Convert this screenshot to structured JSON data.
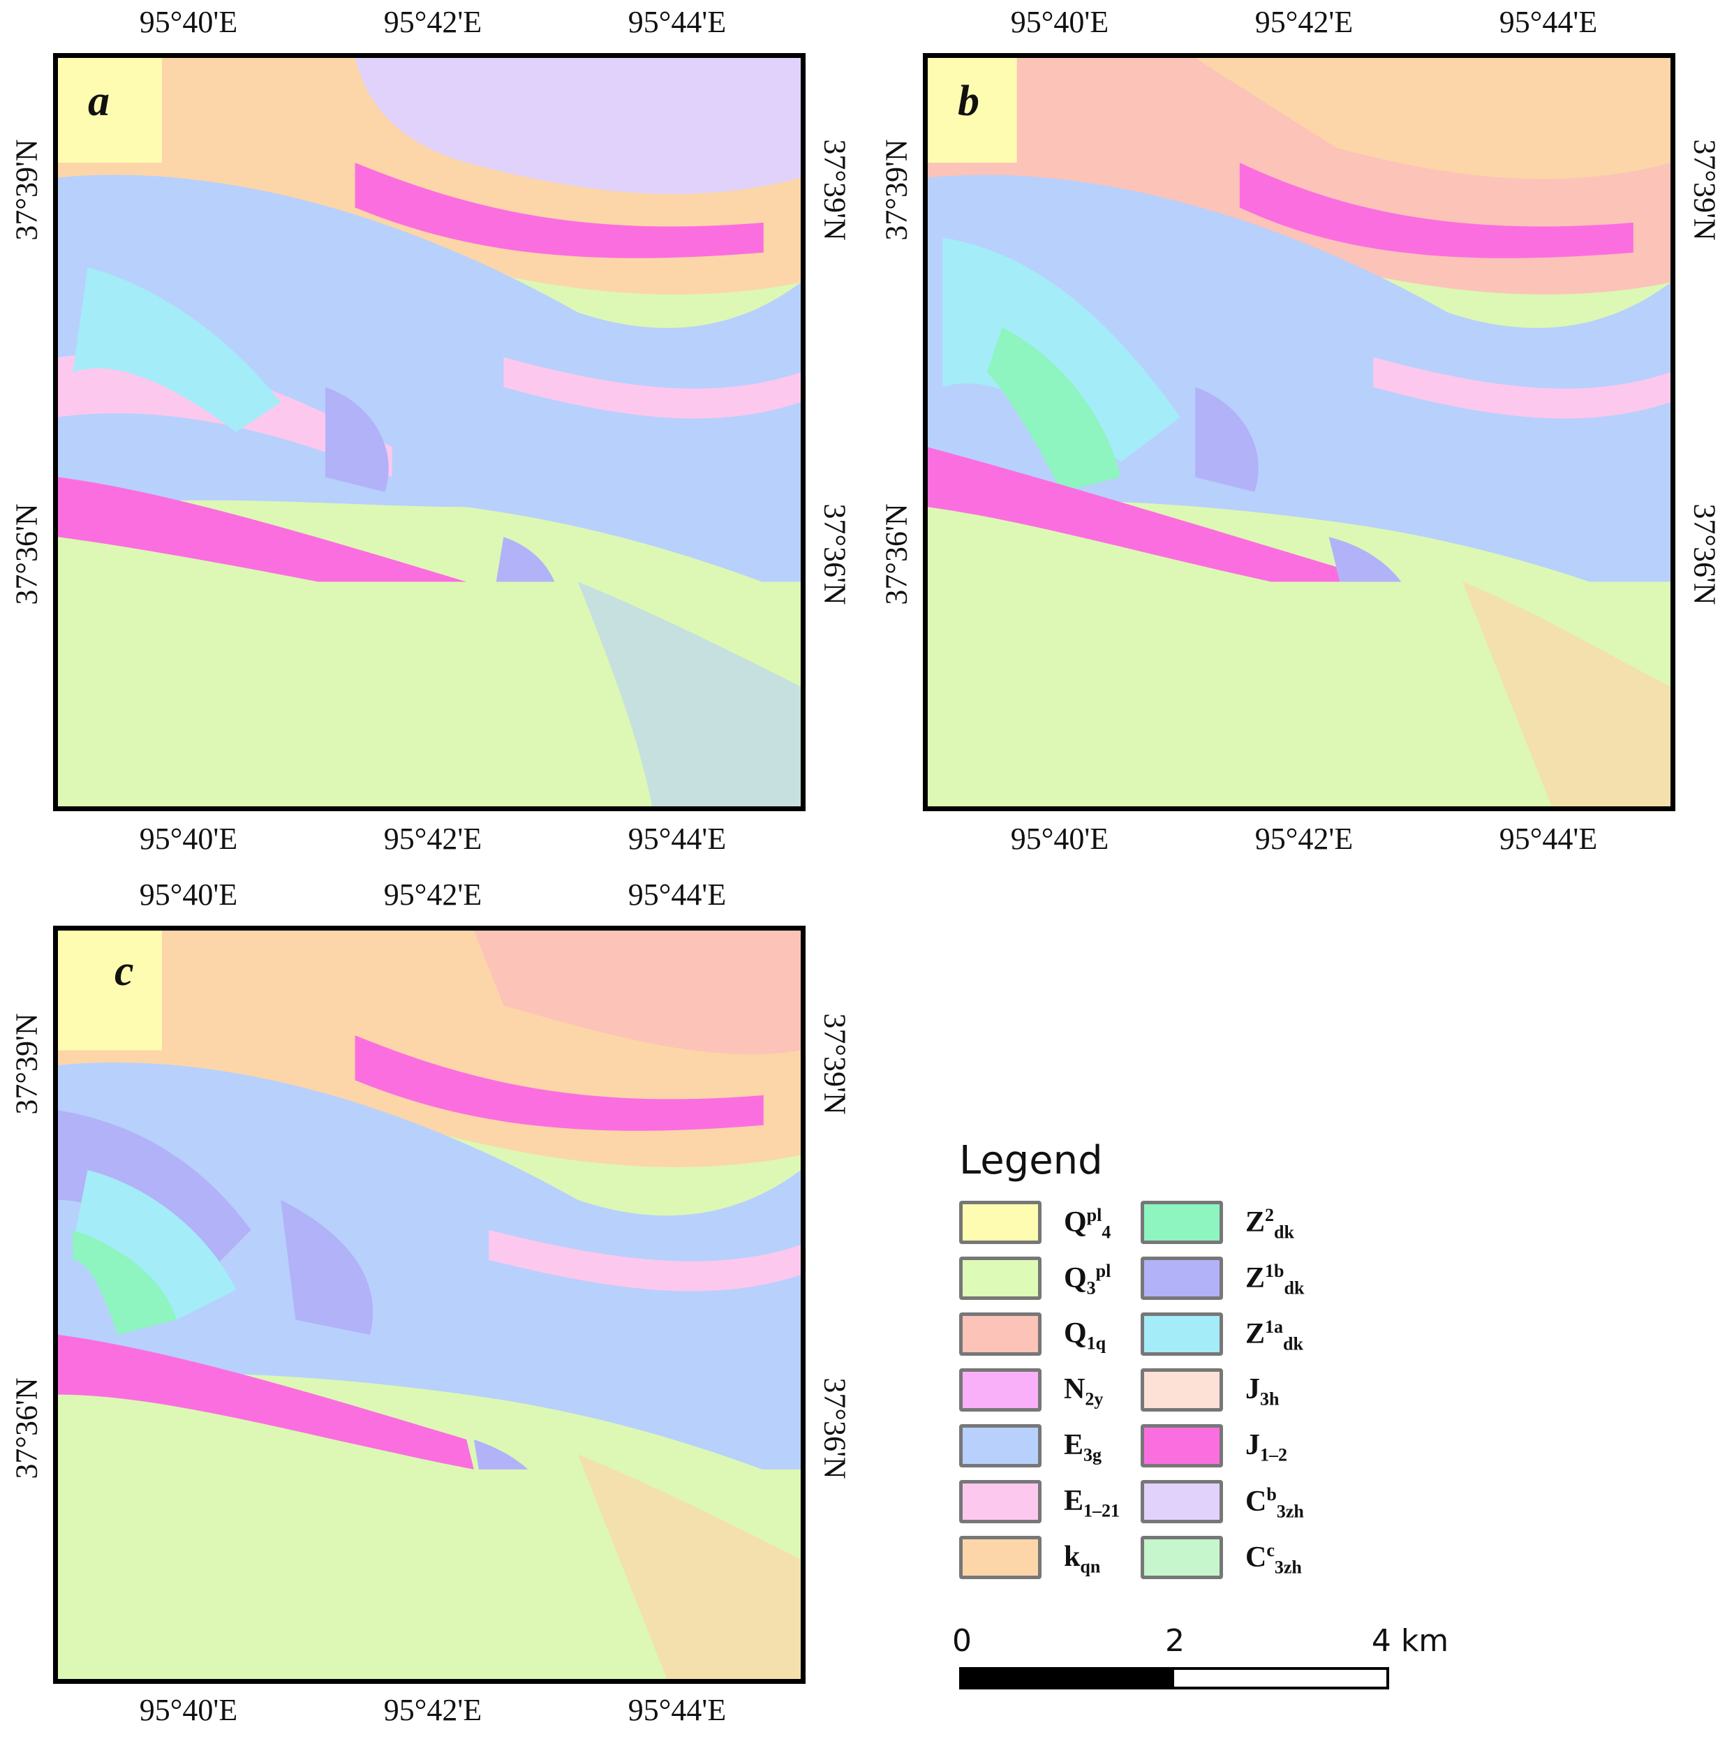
{
  "panels": [
    {
      "id": "a",
      "label": "a",
      "top_labels": [
        "95°40'E",
        "95°42'E",
        "95°44'E"
      ],
      "bottom_labels": [
        "95°40'E",
        "95°42'E",
        "95°44'E"
      ],
      "left_labels": [
        "37°39'N",
        "37°36'N"
      ],
      "right_labels": [
        "37°39'N",
        "37°36'N"
      ]
    },
    {
      "id": "b",
      "label": "b",
      "top_labels": [
        "95°40'E",
        "95°42'E",
        "95°44'E"
      ],
      "bottom_labels": [
        "95°40'E",
        "95°42'E",
        "95°44'E"
      ],
      "left_labels": [
        "37°39'N",
        "37°36'N"
      ],
      "right_labels": [
        "37°39'N",
        "37°36'N"
      ]
    },
    {
      "id": "c",
      "label": "c",
      "top_labels": [
        "95°40'E",
        "95°42'E",
        "95°44'E"
      ],
      "bottom_labels": [
        "95°40'E",
        "95°42'E",
        "95°44'E"
      ],
      "left_labels": [
        "37°39'N",
        "37°36'N"
      ],
      "right_labels": [
        "37°39'N",
        "37°36'N"
      ]
    }
  ],
  "legend": {
    "title": "Legend",
    "items": [
      {
        "base": "Q",
        "sup": "pl",
        "sub": "4",
        "color": "#fefcb0"
      },
      {
        "base": "Q",
        "sub": "3",
        "sup": "pl",
        "color": "#ddfab6"
      },
      {
        "base": "Q",
        "sub": "1q",
        "color": "#fcc3b8"
      },
      {
        "base": "N",
        "sub": "2y",
        "color": "#fab0f8"
      },
      {
        "base": "E",
        "sub": "3g",
        "color": "#b8d0fc"
      },
      {
        "base": "E",
        "sub": "1–21",
        "color": "#fcc8ee"
      },
      {
        "base": "k",
        "sub": "qn",
        "color": "#fcd6a8"
      },
      {
        "base": "Z",
        "sup": "2",
        "sub": "dk",
        "color": "#8ef4c0"
      },
      {
        "base": "Z",
        "sup": "1b",
        "sub": "dk",
        "color": "#b2b2f8"
      },
      {
        "base": "Z",
        "sup": "1a",
        "sub": "dk",
        "color": "#a4ecf8"
      },
      {
        "base": "J",
        "sub": "3h",
        "color": "#fde0d6"
      },
      {
        "base": "J",
        "sub": "1–2",
        "color": "#fb6ee0"
      },
      {
        "base": "C",
        "sup": "b",
        "sub": "3zh",
        "color": "#e0d2fa"
      },
      {
        "base": "C",
        "sup": "c",
        "sub": "3zh",
        "color": "#c6f6cc"
      }
    ]
  },
  "scale_bar": {
    "labels": [
      "0",
      "2",
      "4 km"
    ]
  }
}
